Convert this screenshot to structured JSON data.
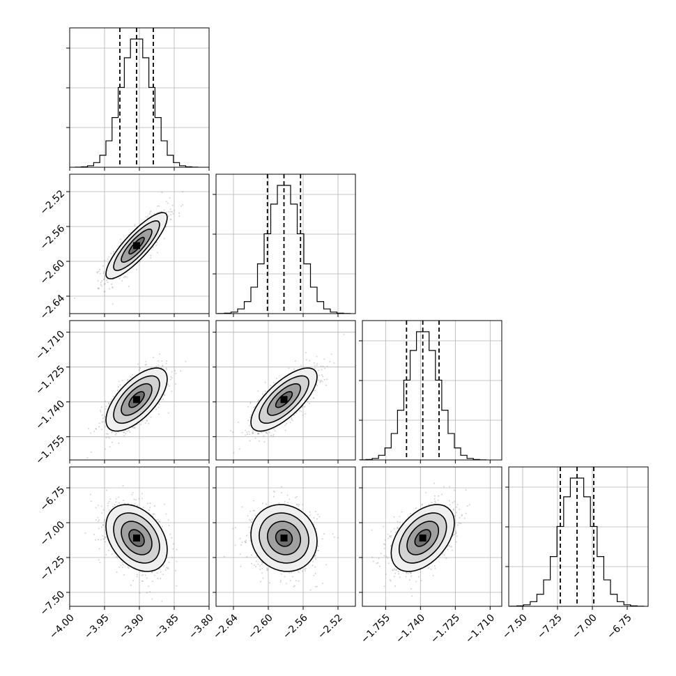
{
  "chart_data": {
    "type": "corner",
    "description_none": "",
    "parameters": [
      {
        "index": 0,
        "range": [
          -4.0,
          -3.8
        ],
        "ticks": [
          -4.0,
          -3.95,
          -3.9,
          -3.85,
          -3.8
        ],
        "tick_labels": [
          "−4.00",
          "−3.95",
          "−3.90",
          "−3.85",
          "−3.80"
        ],
        "quantiles": [
          -3.928,
          -3.904,
          -3.88
        ],
        "median": -3.904,
        "sigma": 0.022
      },
      {
        "index": 1,
        "range": [
          -2.66,
          -2.5
        ],
        "ticks": [
          -2.64,
          -2.6,
          -2.56,
          -2.52
        ],
        "tick_labels": [
          "−2.64",
          "−2.60",
          "−2.56",
          "−2.52"
        ],
        "quantiles": [
          -2.601,
          -2.582,
          -2.563
        ],
        "median": -2.582,
        "sigma": 0.019
      },
      {
        "index": 2,
        "range": [
          -1.765,
          -1.705
        ],
        "ticks": [
          -1.755,
          -1.74,
          -1.725,
          -1.71
        ],
        "tick_labels": [
          "−1.755",
          "−1.740",
          "−1.725",
          "−1.710"
        ],
        "quantiles": [
          -1.746,
          -1.739,
          -1.732
        ],
        "median": -1.739,
        "sigma": 0.0068
      },
      {
        "index": 3,
        "range": [
          -7.6,
          -6.6
        ],
        "ticks": [
          -7.5,
          -7.25,
          -7.0,
          -6.75
        ],
        "tick_labels": [
          "−7.50",
          "−7.25",
          "−7.00",
          "−6.75"
        ],
        "quantiles": [
          -7.23,
          -7.11,
          -6.99
        ],
        "median": -7.11,
        "sigma": 0.12
      }
    ],
    "correlations": [
      [
        1.0,
        0.85,
        0.65,
        -0.35
      ],
      [
        0.85,
        1.0,
        0.72,
        -0.1
      ],
      [
        0.65,
        0.72,
        1.0,
        0.45
      ],
      [
        -0.35,
        -0.1,
        0.45,
        1.0
      ]
    ],
    "contour_levels_sigma": [
      0.5,
      1.0,
      1.5,
      2.0
    ],
    "histogram_bins": 20,
    "grid": true,
    "line_color": "#000000",
    "point_color": "#7f7f7f",
    "legend": "none"
  }
}
